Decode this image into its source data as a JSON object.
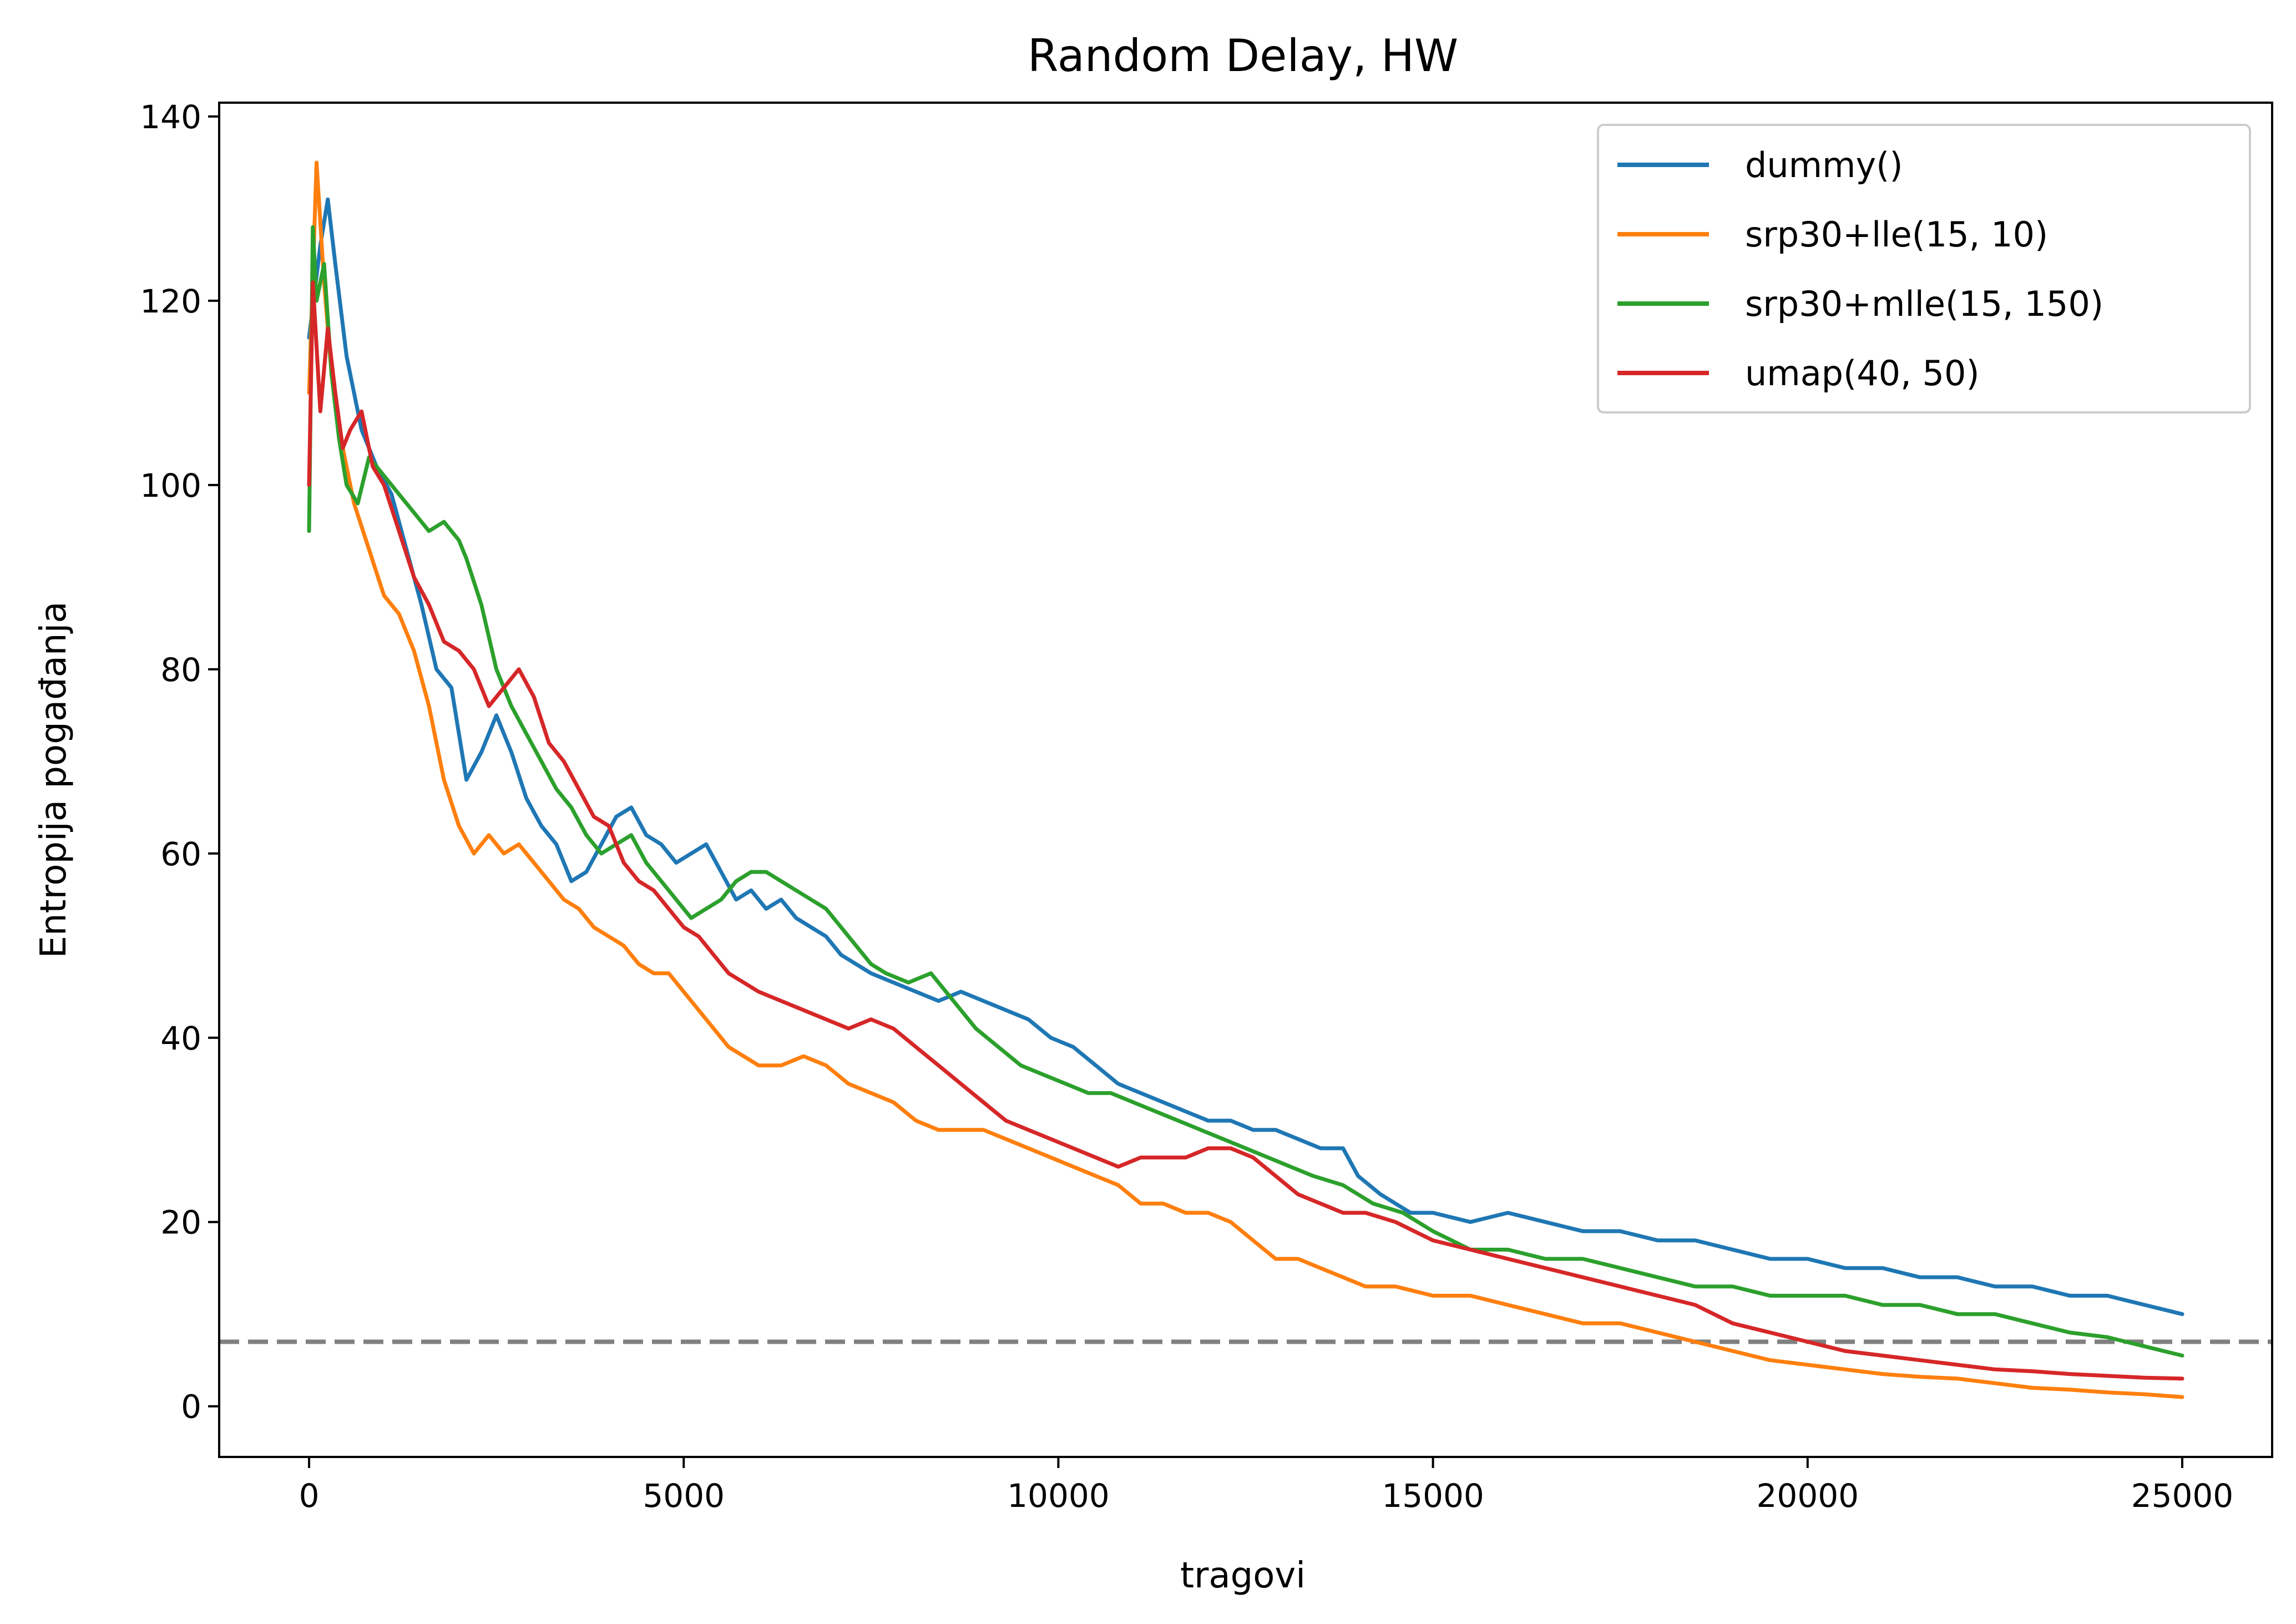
{
  "chart_data": {
    "type": "line",
    "title": "Random Delay, HW",
    "xlabel": "tragovi",
    "ylabel": "Entropija pogađanja",
    "xlim": [
      -1200,
      26200
    ],
    "ylim": [
      -5.5,
      141.5
    ],
    "xticks": [
      0,
      5000,
      10000,
      15000,
      20000,
      25000
    ],
    "yticks": [
      0,
      20,
      40,
      60,
      80,
      100,
      120,
      140
    ],
    "grid": false,
    "legend_position": "top-right",
    "reference_line": {
      "y": 7,
      "color": "#808080",
      "style": "dashed"
    },
    "series": [
      {
        "name": "dummy()",
        "color": "#1f77b4",
        "x": [
          0,
          150,
          250,
          350,
          500,
          700,
          900,
          1100,
          1300,
          1500,
          1700,
          1900,
          2000,
          2100,
          2300,
          2500,
          2700,
          2900,
          3100,
          3300,
          3500,
          3700,
          3900,
          4100,
          4300,
          4500,
          4700,
          4900,
          5100,
          5300,
          5500,
          5700,
          5900,
          6100,
          6300,
          6500,
          6700,
          6900,
          7100,
          7300,
          7500,
          7800,
          8100,
          8400,
          8700,
          9000,
          9300,
          9600,
          9900,
          10200,
          10500,
          10800,
          11100,
          11400,
          11700,
          12000,
          12300,
          12600,
          12900,
          13200,
          13500,
          13800,
          14000,
          14300,
          14700,
          15000,
          15500,
          16000,
          16500,
          17000,
          17500,
          18000,
          18500,
          19000,
          19500,
          20000,
          20500,
          21000,
          21500,
          22000,
          22500,
          23000,
          23500,
          24000,
          24500,
          25000
        ],
        "y": [
          116,
          126,
          131,
          124,
          114,
          106,
          102,
          99,
          93,
          87,
          80,
          78,
          73,
          68,
          71,
          75,
          71,
          66,
          63,
          61,
          57,
          58,
          61,
          64,
          65,
          62,
          61,
          59,
          60,
          61,
          58,
          55,
          56,
          54,
          55,
          53,
          52,
          51,
          49,
          48,
          47,
          46,
          45,
          44,
          45,
          44,
          43,
          42,
          40,
          39,
          37,
          35,
          34,
          33,
          32,
          31,
          31,
          30,
          30,
          29,
          28,
          28,
          25,
          23,
          21,
          21,
          20,
          21,
          20,
          19,
          19,
          18,
          18,
          17,
          16,
          16,
          15,
          15,
          14,
          14,
          13,
          13,
          12,
          12,
          11,
          10
        ]
      },
      {
        "name": "srp30+lle(15, 10)",
        "color": "#ff7f0e",
        "x": [
          0,
          100,
          200,
          300,
          450,
          600,
          800,
          1000,
          1200,
          1400,
          1600,
          1800,
          2000,
          2200,
          2400,
          2600,
          2800,
          3000,
          3200,
          3400,
          3600,
          3800,
          4000,
          4200,
          4400,
          4600,
          4800,
          5000,
          5200,
          5400,
          5600,
          5800,
          6000,
          6300,
          6600,
          6900,
          7200,
          7500,
          7800,
          8100,
          8400,
          8700,
          9000,
          9300,
          9600,
          9900,
          10200,
          10500,
          10800,
          11100,
          11400,
          11700,
          12000,
          12300,
          12600,
          12900,
          13200,
          13500,
          13800,
          14100,
          14500,
          15000,
          15500,
          16000,
          16500,
          17000,
          17500,
          18000,
          18500,
          19000,
          19500,
          20000,
          20500,
          21000,
          21500,
          22000,
          22500,
          23000,
          23500,
          24000,
          24500,
          25000
        ],
        "y": [
          110,
          135,
          122,
          112,
          104,
          98,
          93,
          88,
          86,
          82,
          76,
          68,
          63,
          60,
          62,
          60,
          61,
          59,
          57,
          55,
          54,
          52,
          51,
          50,
          48,
          47,
          47,
          45,
          43,
          41,
          39,
          38,
          37,
          37,
          38,
          37,
          35,
          34,
          33,
          31,
          30,
          30,
          30,
          29,
          28,
          27,
          26,
          25,
          24,
          22,
          22,
          21,
          21,
          20,
          18,
          16,
          16,
          15,
          14,
          13,
          13,
          12,
          12,
          11,
          10,
          9,
          9,
          8,
          7,
          6,
          5,
          4.5,
          4,
          3.5,
          3.2,
          3,
          2.5,
          2,
          1.8,
          1.5,
          1.3,
          1
        ]
      },
      {
        "name": "srp30+mlle(15, 150)",
        "color": "#2ca02c",
        "x": [
          0,
          50,
          100,
          200,
          300,
          400,
          500,
          650,
          800,
          1000,
          1200,
          1400,
          1600,
          1800,
          2000,
          2100,
          2300,
          2500,
          2700,
          2900,
          3100,
          3300,
          3500,
          3700,
          3900,
          4100,
          4300,
          4500,
          4700,
          4900,
          5100,
          5300,
          5500,
          5700,
          5900,
          6100,
          6300,
          6500,
          6700,
          6900,
          7100,
          7300,
          7500,
          7700,
          8000,
          8300,
          8600,
          8900,
          9200,
          9500,
          9800,
          10100,
          10400,
          10700,
          11000,
          11300,
          11600,
          11900,
          12200,
          12500,
          12800,
          13100,
          13400,
          13800,
          14200,
          14600,
          15000,
          15500,
          16000,
          16500,
          17000,
          17500,
          18000,
          18500,
          19000,
          19500,
          20000,
          20500,
          21000,
          21500,
          22000,
          22500,
          23000,
          23500,
          24000,
          24500,
          25000
        ],
        "y": [
          95,
          128,
          120,
          124,
          112,
          105,
          100,
          98,
          103,
          101,
          99,
          97,
          95,
          96,
          94,
          92,
          87,
          80,
          76,
          73,
          70,
          67,
          65,
          62,
          60,
          61,
          62,
          59,
          57,
          55,
          53,
          54,
          55,
          57,
          58,
          58,
          57,
          56,
          55,
          54,
          52,
          50,
          48,
          47,
          46,
          47,
          44,
          41,
          39,
          37,
          36,
          35,
          34,
          34,
          33,
          32,
          31,
          30,
          29,
          28,
          27,
          26,
          25,
          24,
          22,
          21,
          19,
          17,
          17,
          16,
          16,
          15,
          14,
          13,
          13,
          12,
          12,
          12,
          11,
          11,
          10,
          10,
          9,
          8,
          7.5,
          6.5,
          5.5
        ]
      },
      {
        "name": "umap(40, 50)",
        "color": "#d62728",
        "x": [
          0,
          50,
          150,
          250,
          350,
          450,
          550,
          700,
          850,
          1000,
          1200,
          1400,
          1600,
          1800,
          2000,
          2200,
          2400,
          2600,
          2800,
          3000,
          3200,
          3400,
          3600,
          3800,
          4000,
          4200,
          4400,
          4600,
          4800,
          5000,
          5200,
          5400,
          5600,
          5800,
          6000,
          6300,
          6600,
          6900,
          7200,
          7500,
          7800,
          8100,
          8400,
          8700,
          9000,
          9300,
          9600,
          9900,
          10200,
          10500,
          10800,
          11100,
          11400,
          11700,
          12000,
          12300,
          12600,
          12900,
          13200,
          13500,
          13800,
          14100,
          14500,
          15000,
          15500,
          16000,
          16500,
          17000,
          17500,
          18000,
          18500,
          19000,
          19500,
          20000,
          20500,
          21000,
          21500,
          22000,
          22500,
          23000,
          23500,
          24000,
          24500,
          25000
        ],
        "y": [
          100,
          122,
          108,
          117,
          110,
          104,
          106,
          108,
          102,
          100,
          95,
          90,
          87,
          83,
          82,
          80,
          76,
          78,
          80,
          77,
          72,
          70,
          67,
          64,
          63,
          59,
          57,
          56,
          54,
          52,
          51,
          49,
          47,
          46,
          45,
          44,
          43,
          42,
          41,
          42,
          41,
          39,
          37,
          35,
          33,
          31,
          30,
          29,
          28,
          27,
          26,
          27,
          27,
          27,
          28,
          28,
          27,
          25,
          23,
          22,
          21,
          21,
          20,
          18,
          17,
          16,
          15,
          14,
          13,
          12,
          11,
          9,
          8,
          7,
          6,
          5.5,
          5,
          4.5,
          4,
          3.8,
          3.5,
          3.3,
          3.1,
          3
        ]
      }
    ]
  }
}
